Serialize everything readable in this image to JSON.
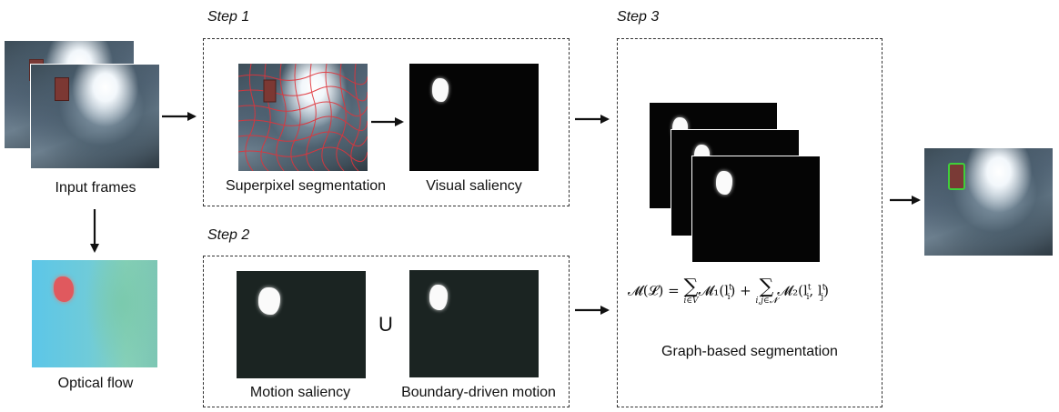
{
  "steps": {
    "step1": "Step 1",
    "step2": "Step 2",
    "step3": "Step 3"
  },
  "captions": {
    "input_frames": "Input frames",
    "optical_flow": "Optical flow",
    "superpixel": "Superpixel segmentation",
    "visual_saliency": "Visual saliency",
    "motion_saliency": "Motion saliency",
    "boundary_motion": "Boundary-driven motion",
    "graph_seg": "Graph-based segmentation"
  },
  "union_symbol": "U",
  "formula": {
    "lhs": "𝓜(𝓛) = ",
    "sum1_sub": "i∈V",
    "term1": "𝓜₁(l",
    "term1_sup": "t",
    "term1_sub": "i",
    "plus": " + ",
    "sum2_sub": "i,j∈𝓝",
    "term2": "𝓜₂(l",
    "term2_args": "l"
  },
  "colors": {
    "arrow": "#111111",
    "superpixel_grid": "#e0343b",
    "detection_box": "#3fcf3a"
  }
}
